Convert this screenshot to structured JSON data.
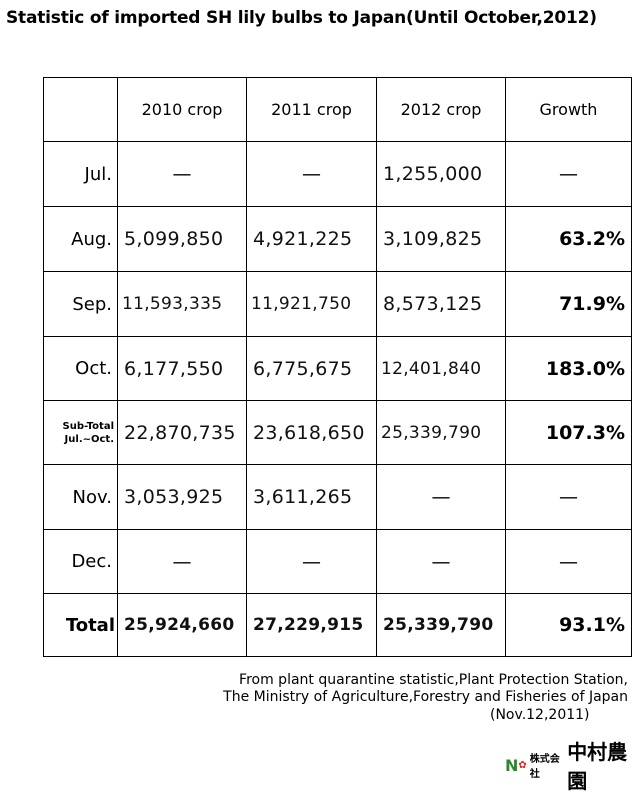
{
  "title": "Statistic of imported SH lily bulbs to Japan(Until October,2012)",
  "table": {
    "headers": [
      "",
      "2010 crop",
      "2011 crop",
      "2012 crop",
      "Growth"
    ],
    "rows": [
      {
        "label": "Jul.",
        "v": [
          "—",
          "—",
          "1,255,000"
        ],
        "growth": "—"
      },
      {
        "label": "Aug.",
        "v": [
          "5,099,850",
          "4,921,225",
          "3,109,825"
        ],
        "growth": "63.2%"
      },
      {
        "label": "Sep.",
        "v": [
          "11,593,335",
          "11,921,750",
          "8,573,125"
        ],
        "growth": "71.9%"
      },
      {
        "label": "Oct.",
        "v": [
          "6,177,550",
          "6,775,675",
          "12,401,840"
        ],
        "growth": "183.0%"
      },
      {
        "label": "Sub-Total",
        "label2": "Jul.~Oct.",
        "v": [
          "22,870,735",
          "23,618,650",
          "25,339,790"
        ],
        "growth": "107.3%"
      },
      {
        "label": "Nov.",
        "v": [
          "3,053,925",
          "3,611,265",
          "—"
        ],
        "growth": "—"
      },
      {
        "label": "Dec.",
        "v": [
          "—",
          "—",
          "—"
        ],
        "growth": "—"
      },
      {
        "label": "Total",
        "v": [
          "25,924,660",
          "27,229,915",
          "25,339,790"
        ],
        "growth": "93.1%"
      }
    ]
  },
  "source": {
    "line1": "From plant quarantine statistic,Plant Protection Station,",
    "line2": "The Ministry of Agriculture,Forestry and Fisheries of Japan",
    "date": "(Nov.12,2011)"
  },
  "logo": {
    "small": "株式会社",
    "big": "中村農園"
  }
}
